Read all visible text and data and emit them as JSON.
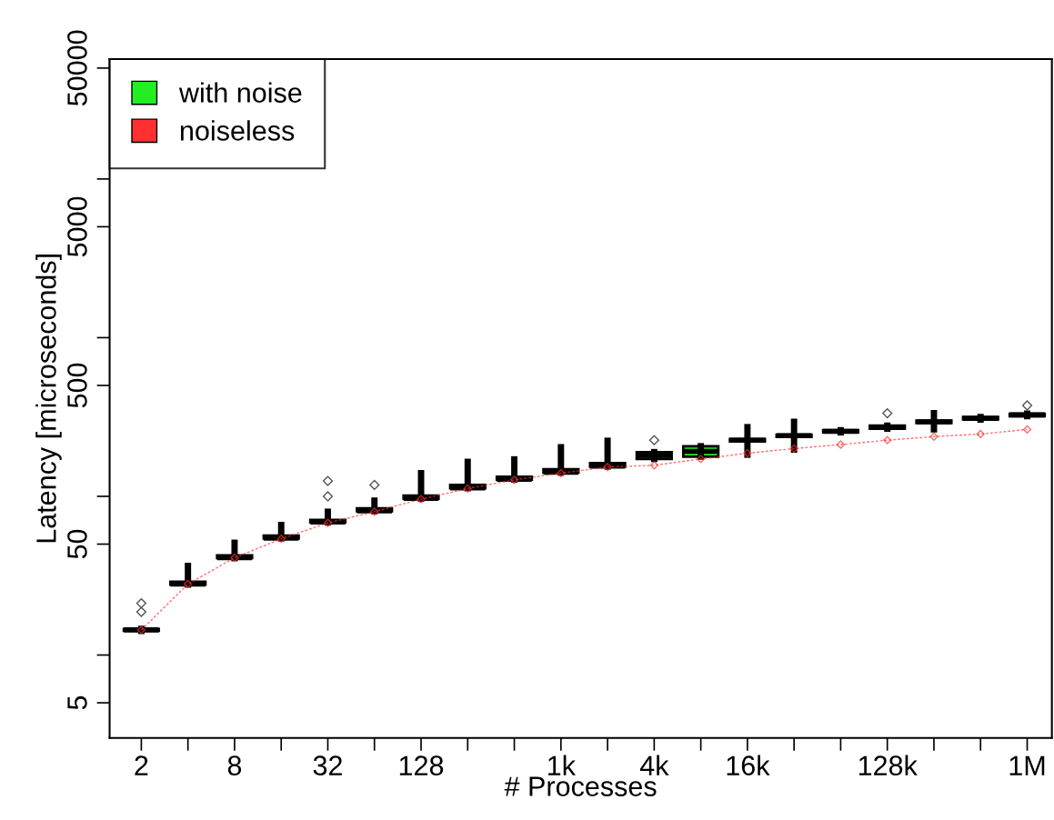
{
  "chart_data": {
    "type": "box",
    "xlabel": "# Processes",
    "ylabel": "Latency [microseconds]",
    "categories": [
      "2",
      null,
      "8",
      null,
      "32",
      null,
      "128",
      null,
      null,
      "1k",
      null,
      "4k",
      null,
      "16k",
      null,
      null,
      "128k",
      null,
      null,
      "1M"
    ],
    "log": "y",
    "ylim": [
      3,
      57000
    ],
    "yticks": [
      5,
      {
        "value": 10,
        "label": null
      },
      50,
      {
        "value": 100,
        "label": null
      },
      500,
      {
        "value": 1000,
        "label": null
      },
      5000,
      {
        "value": 10000,
        "label": null
      },
      50000
    ],
    "grid": false,
    "legend": "top left",
    "series": [
      {
        "name": "with noise",
        "color": "#22ee22",
        "boxes": [
          {
            "low": 14.2,
            "q1": 14.2,
            "median": 14.4,
            "q3": 14.6,
            "high": 14.6,
            "outliers": [
              18.7,
              21.2
            ]
          },
          {
            "low": 27.8,
            "q1": 27.8,
            "median": 28,
            "q3": 29,
            "high": 36.5
          },
          {
            "low": 40.8,
            "q1": 40.8,
            "median": 41,
            "q3": 42.5,
            "high": 51
          },
          {
            "low": 54.3,
            "q1": 54.3,
            "median": 54.6,
            "q3": 56.5,
            "high": 66
          },
          {
            "low": 68.5,
            "q1": 68.5,
            "median": 69,
            "q3": 71,
            "high": 80,
            "outliers": [
              100,
              125
            ]
          },
          {
            "low": 80.5,
            "q1": 80.5,
            "median": 81,
            "q3": 84,
            "high": 94,
            "outliers": [
              118
            ]
          },
          {
            "low": 96.5,
            "q1": 96.5,
            "median": 97,
            "q3": 101,
            "high": 140
          },
          {
            "low": 112.5,
            "q1": 112.5,
            "median": 113,
            "q3": 118,
            "high": 165
          },
          {
            "low": 127.5,
            "q1": 127.5,
            "median": 128,
            "q3": 133,
            "high": 171
          },
          {
            "low": 141,
            "q1": 141,
            "median": 142,
            "q3": 148,
            "high": 204
          },
          {
            "low": 154,
            "q1": 154,
            "median": 155,
            "q3": 162,
            "high": 224
          },
          {
            "low": 172,
            "q1": 172,
            "median": 181,
            "q3": 190,
            "high": 190,
            "outliers": [
              226
            ]
          },
          {
            "low": 178,
            "q1": 178,
            "median": 192,
            "q3": 207,
            "high": 207
          },
          {
            "low": 183,
            "q1": 222,
            "median": 226,
            "q3": 230,
            "high": 273
          },
          {
            "low": 197,
            "q1": 237,
            "median": 241,
            "q3": 245,
            "high": 295
          },
          {
            "low": 253,
            "q1": 253,
            "median": 257,
            "q3": 261,
            "high": 261
          },
          {
            "low": 267,
            "q1": 267,
            "median": 273,
            "q3": 279,
            "high": 279,
            "outliers": [
              334
            ]
          },
          {
            "low": 264,
            "q1": 290,
            "median": 295,
            "q3": 300,
            "high": 334
          },
          {
            "low": 305,
            "q1": 305,
            "median": 310,
            "q3": 316,
            "high": 316
          },
          {
            "low": 320,
            "q1": 320,
            "median": 326,
            "q3": 332,
            "high": 332,
            "outliers": [
              374
            ]
          }
        ]
      },
      {
        "name": "noiseless",
        "type": "line",
        "color": "#ff3030",
        "marker": "diamond",
        "line_style": "dashed",
        "values": [
          14.4,
          28,
          41,
          54,
          68,
          80,
          96,
          112,
          127,
          140,
          153,
          157,
          172,
          187,
          200,
          212,
          226,
          238,
          247,
          264
        ]
      }
    ]
  }
}
